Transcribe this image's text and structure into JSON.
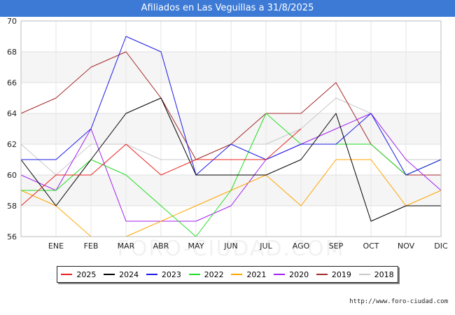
{
  "chart_data": {
    "type": "line",
    "title": "Afiliados en Las Veguillas a 31/8/2025",
    "xlabel": "",
    "ylabel": "",
    "categories": [
      "",
      "ENE",
      "FEB",
      "MAR",
      "ABR",
      "MAY",
      "JUN",
      "JUL",
      "AGO",
      "SEP",
      "OCT",
      "NOV",
      "DIC"
    ],
    "ylim": [
      56,
      70
    ],
    "yticks": [
      56,
      58,
      60,
      62,
      64,
      66,
      68,
      70
    ],
    "grid": true,
    "legend_position": "bottom",
    "series": [
      {
        "name": "2025",
        "color": "#e8211f",
        "values": [
          58,
          60,
          60,
          62,
          60,
          61,
          61,
          61,
          63,
          null,
          null,
          null,
          null
        ]
      },
      {
        "name": "2024",
        "color": "#000000",
        "values": [
          61,
          58,
          61,
          64,
          65,
          60,
          60,
          60,
          61,
          64,
          57,
          58,
          58
        ]
      },
      {
        "name": "2023",
        "color": "#1a1ae6",
        "values": [
          61,
          61,
          63,
          69,
          68,
          60,
          62,
          61,
          62,
          62,
          64,
          60,
          61
        ]
      },
      {
        "name": "2022",
        "color": "#22dd22",
        "values": [
          59,
          59,
          61,
          60,
          58,
          56,
          59,
          64,
          62,
          62,
          62,
          60,
          61
        ]
      },
      {
        "name": "2021",
        "color": "#ffa500",
        "values": [
          59,
          58,
          56,
          56,
          57,
          58,
          59,
          60,
          58,
          61,
          61,
          58,
          59
        ]
      },
      {
        "name": "2020",
        "color": "#a020f0",
        "values": [
          60,
          59,
          63,
          57,
          57,
          57,
          58,
          61,
          62,
          63,
          64,
          61,
          59
        ]
      },
      {
        "name": "2019",
        "color": "#a52a2a",
        "values": [
          64,
          65,
          67,
          68,
          65,
          61,
          62,
          64,
          64,
          66,
          62,
          60,
          60
        ]
      },
      {
        "name": "2018",
        "color": "#c8c8c8",
        "values": [
          62,
          60,
          62,
          62,
          61,
          61,
          62,
          62,
          63,
          65,
          64,
          61,
          61
        ]
      }
    ]
  },
  "watermark": "FORO-CIUDAD.COM",
  "source": "http://www.foro-ciudad.com"
}
